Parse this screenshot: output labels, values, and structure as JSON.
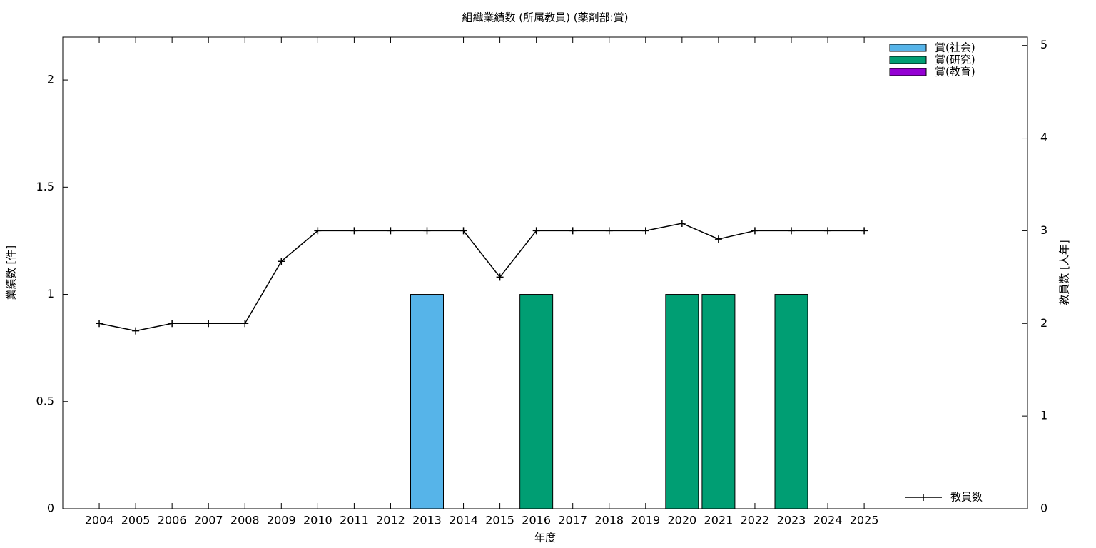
{
  "chart_data": {
    "type": "bar",
    "stacked": true,
    "title": "組織業績数 (所属教員) (薬剤部:賞)",
    "x_label": "年度",
    "y_label": "業績数 [件]",
    "y2_label": "教員数 [人年]",
    "categories": [
      "2004",
      "2005",
      "2006",
      "2007",
      "2008",
      "2009",
      "2010",
      "2011",
      "2012",
      "2013",
      "2014",
      "2015",
      "2016",
      "2017",
      "2018",
      "2019",
      "2020",
      "2021",
      "2022",
      "2023",
      "2024",
      "2025"
    ],
    "series": [
      {
        "name": "賞(社会)",
        "type": "bar",
        "color": "#56b4e9",
        "values": [
          0,
          0,
          0,
          0,
          0,
          0,
          0,
          0,
          0,
          1,
          0,
          0,
          0,
          0,
          0,
          0,
          0,
          0,
          0,
          0,
          0,
          0
        ]
      },
      {
        "name": "賞(研究)",
        "type": "bar",
        "color": "#009e73",
        "values": [
          0,
          0,
          0,
          0,
          0,
          0,
          0,
          0,
          0,
          0,
          0,
          0,
          1,
          0,
          0,
          0,
          1,
          1,
          0,
          1,
          0,
          0
        ]
      },
      {
        "name": "賞(教育)",
        "type": "bar",
        "color": "#9400d3",
        "values": [
          0,
          0,
          0,
          0,
          0,
          0,
          0,
          0,
          0,
          0,
          0,
          0,
          0,
          0,
          0,
          0,
          0,
          0,
          0,
          0,
          0,
          0
        ]
      },
      {
        "name": "教員数",
        "type": "line",
        "axis": "y2",
        "color": "#000000",
        "values": [
          2,
          1.92,
          2,
          2,
          2,
          2.67,
          3,
          3,
          3,
          3,
          3,
          2.5,
          3,
          3,
          3,
          3,
          3.08,
          2.91,
          3,
          3,
          3,
          3
        ]
      }
    ],
    "ylim": [
      0,
      2.2
    ],
    "yticks": [
      0,
      0.5,
      1,
      1.5,
      2
    ],
    "y2lim": [
      0,
      5.09
    ],
    "y2ticks": [
      0,
      1,
      2,
      3,
      4,
      5
    ],
    "legend": "top-right",
    "grid": false
  }
}
